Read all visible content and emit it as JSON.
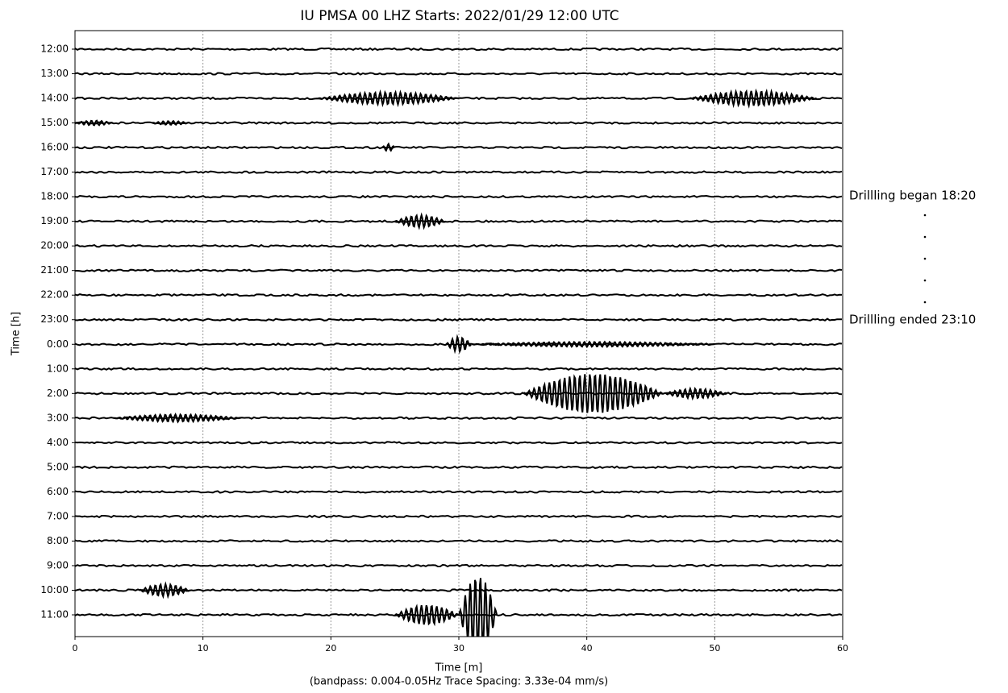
{
  "chart_data": {
    "type": "helicorder",
    "title": "IU PMSA 00 LHZ  Starts: 2022/01/29 12:00 UTC",
    "xlabel": "Time [m]",
    "subtitle": "(bandpass: 0.004-0.05Hz  Trace Spacing: 3.33e-04 mm/s)",
    "ylabel": "Time [h]",
    "xlim": [
      0,
      60
    ],
    "xticks": [
      0,
      10,
      20,
      30,
      40,
      50,
      60
    ],
    "grid": true,
    "color": "#000000",
    "y_labels": [
      "12:00",
      "13:00",
      "14:00",
      "15:00",
      "16:00",
      "17:00",
      "18:00",
      "19:00",
      "20:00",
      "21:00",
      "22:00",
      "23:00",
      "0:00",
      "1:00",
      "2:00",
      "3:00",
      "4:00",
      "5:00",
      "6:00",
      "7:00",
      "8:00",
      "9:00",
      "10:00",
      "11:00"
    ],
    "traces": [
      {
        "bursts": []
      },
      {
        "bursts": []
      },
      {
        "bursts": [
          [
            19,
            30,
            0.25
          ],
          [
            48,
            58,
            0.3
          ]
        ]
      },
      {
        "bursts": [
          [
            0,
            3,
            0.1
          ],
          [
            6,
            9,
            0.08
          ]
        ]
      },
      {
        "bursts": [
          [
            24,
            25,
            0.15
          ]
        ]
      },
      {
        "bursts": []
      },
      {
        "bursts": []
      },
      {
        "bursts": [
          [
            25,
            29,
            0.25
          ]
        ]
      },
      {
        "bursts": []
      },
      {
        "bursts": []
      },
      {
        "bursts": []
      },
      {
        "bursts": []
      },
      {
        "bursts": [
          [
            29,
            31,
            0.3
          ],
          [
            31,
            50,
            0.1
          ]
        ]
      },
      {
        "bursts": []
      },
      {
        "bursts": [
          [
            35,
            46,
            0.8
          ],
          [
            46,
            51,
            0.2
          ]
        ]
      },
      {
        "bursts": [
          [
            3,
            13,
            0.15
          ]
        ]
      },
      {
        "bursts": []
      },
      {
        "bursts": []
      },
      {
        "bursts": []
      },
      {
        "bursts": []
      },
      {
        "bursts": []
      },
      {
        "bursts": []
      },
      {
        "bursts": [
          [
            5,
            9,
            0.25
          ]
        ]
      },
      {
        "bursts": [
          [
            25,
            30,
            0.4
          ],
          [
            30,
            33,
            1.6
          ]
        ]
      }
    ],
    "annotations": [
      "Drillling began 18:20",
      "Drillling ended 23:10"
    ]
  }
}
